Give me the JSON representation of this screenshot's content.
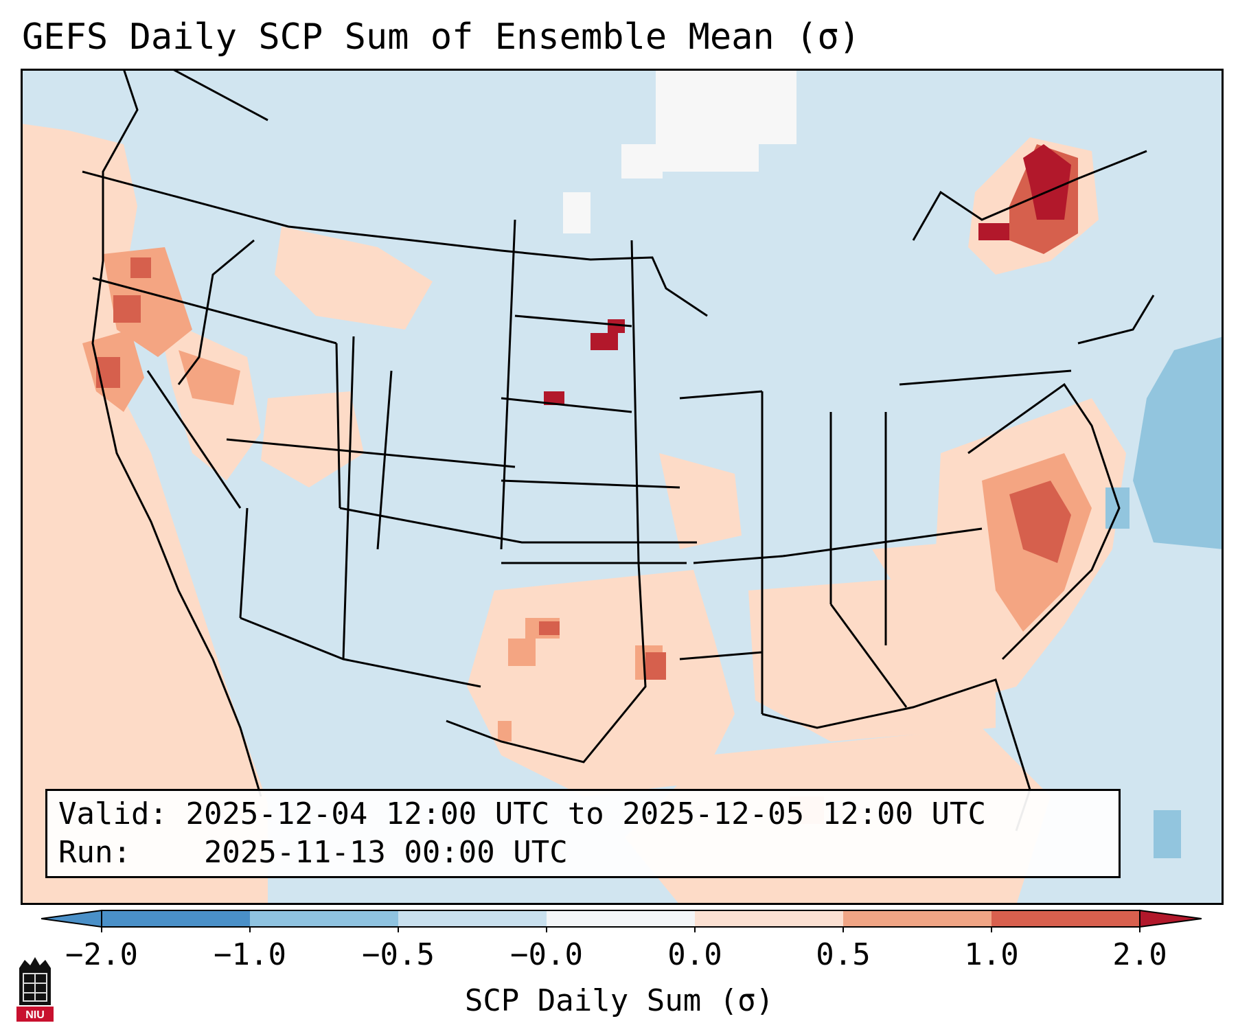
{
  "title": "GEFS Daily SCP Sum of Ensemble Mean (σ)",
  "info": {
    "valid_label": "Valid:",
    "valid_value": "2025-12-04 12:00 UTC to 2025-12-05 12:00 UTC",
    "run_label": "Run:",
    "run_value": "2025-11-13 00:00 UTC"
  },
  "colorbar": {
    "label": "SCP Daily Sum (σ)",
    "ticks": [
      "−2.0",
      "−1.0",
      "−0.5",
      "−0.0",
      "0.0",
      "0.5",
      "1.0",
      "2.0"
    ],
    "bin_colors": [
      "#4a90c8",
      "#8fc3e0",
      "#c9e0ee",
      "#f4f6f8",
      "#fbe0d2",
      "#f0a585",
      "#d8604e",
      "#b2182b"
    ]
  },
  "colors": {
    "background_field": "#d1e5f0",
    "land_border": "#000000",
    "elevated": "#fddbc7",
    "moderate": "#f4a582",
    "high": "#d6604d",
    "extreme": "#b2182b"
  },
  "logo": {
    "text": "NIU"
  }
}
